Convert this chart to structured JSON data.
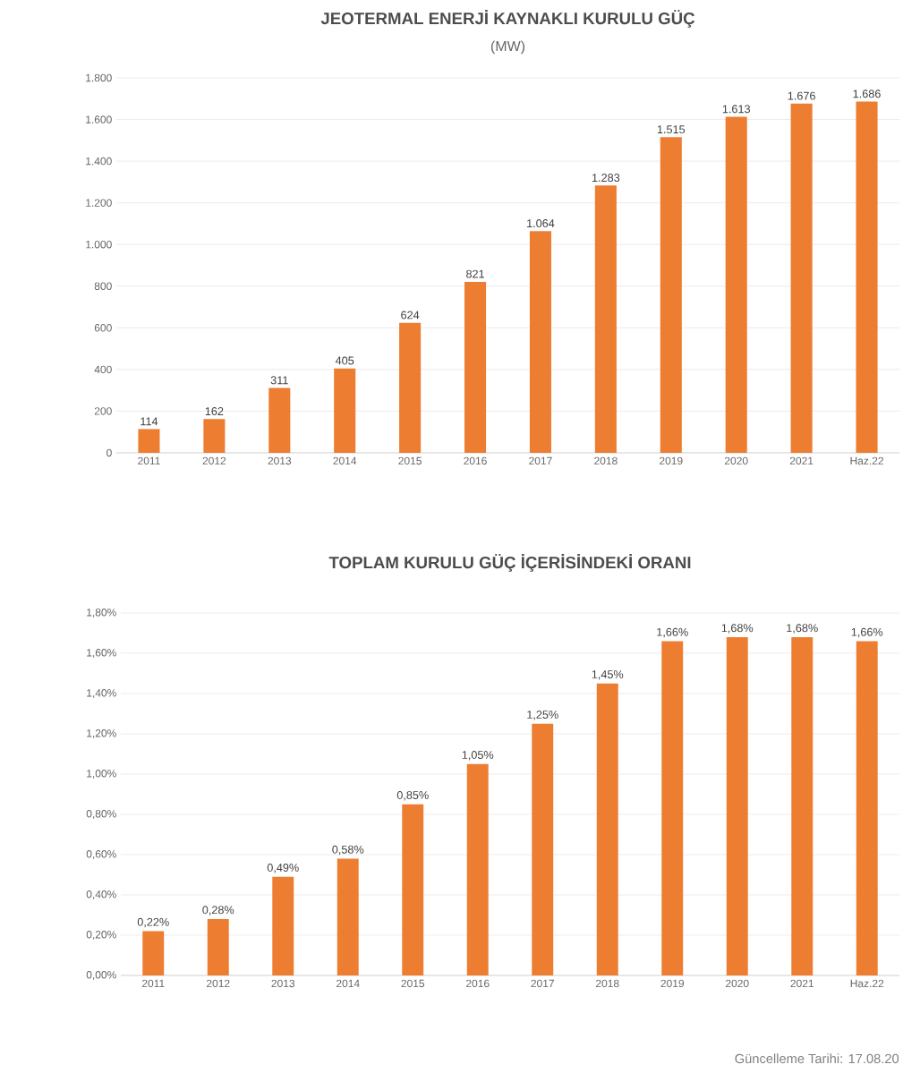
{
  "chart_data": [
    {
      "type": "bar",
      "title": "JEOTERMAL ENERJİ KAYNAKLI KURULU GÜÇ",
      "subtitle": "(MW)",
      "categories": [
        "2011",
        "2012",
        "2013",
        "2014",
        "2015",
        "2016",
        "2017",
        "2018",
        "2019",
        "2020",
        "2021",
        "Haz.22"
      ],
      "values": [
        114,
        162,
        311,
        405,
        624,
        821,
        1064,
        1283,
        1515,
        1613,
        1676,
        1686
      ],
      "value_labels": [
        "114",
        "162",
        "311",
        "405",
        "624",
        "821",
        "1.064",
        "1.283",
        "1.515",
        "1.613",
        "1.676",
        "1.686"
      ],
      "color": "#ed7d31",
      "ylim": [
        0,
        1800
      ],
      "yticks": [
        0,
        200,
        400,
        600,
        800,
        {
          "value": 1000,
          "label": "1.000"
        },
        {
          "value": 1200,
          "label": "1.200"
        },
        {
          "value": 1400,
          "label": "1.400"
        },
        {
          "value": 1600,
          "label": "1.600"
        },
        {
          "value": 1800,
          "label": "1.800"
        }
      ],
      "grid": "y"
    },
    {
      "type": "bar",
      "title": "TOPLAM KURULU GÜÇ İÇERİSİNDEKİ ORANI",
      "categories": [
        "2011",
        "2012",
        "2013",
        "2014",
        "2015",
        "2016",
        "2017",
        "2018",
        "2019",
        "2020",
        "2021",
        "Haz.22"
      ],
      "values": [
        0.22,
        0.28,
        0.49,
        0.58,
        0.85,
        1.05,
        1.25,
        1.45,
        1.66,
        1.68,
        1.68,
        1.66
      ],
      "value_labels": [
        "0,22%",
        "0,28%",
        "0,49%",
        "0,58%",
        "0,85%",
        "1,05%",
        "1,25%",
        "1,45%",
        "1,66%",
        "1,68%",
        "1,68%",
        "1,66%"
      ],
      "color": "#ed7d31",
      "ylim": [
        0,
        1.8
      ],
      "yticks": [
        {
          "value": 0,
          "label": "0,00%"
        },
        {
          "value": 0.2,
          "label": "0,20%"
        },
        {
          "value": 0.4,
          "label": "0,40%"
        },
        {
          "value": 0.6,
          "label": "0,60%"
        },
        {
          "value": 0.8,
          "label": "0,80%"
        },
        {
          "value": 1.0,
          "label": "1,00%"
        },
        {
          "value": 1.2,
          "label": "1,20%"
        },
        {
          "value": 1.4,
          "label": "1,40%"
        },
        {
          "value": 1.6,
          "label": "1,60%"
        },
        {
          "value": 1.8,
          "label": "1,80%"
        }
      ],
      "grid": "y",
      "annotations": [
        "Güncelleme Tarihi: 17.08.20"
      ]
    }
  ]
}
